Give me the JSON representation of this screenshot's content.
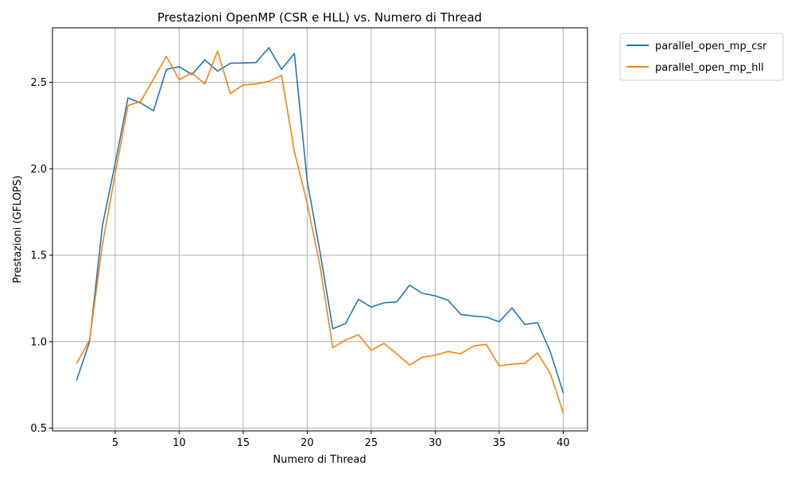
{
  "chart_data": {
    "type": "line",
    "title": "Prestazioni OpenMP (CSR e HLL) vs. Numero di Thread",
    "xlabel": "Numero di Thread",
    "ylabel": "Prestazioni (GFLOPS)",
    "xlim": [
      0.1,
      41.9
    ],
    "ylim": [
      0.484,
      2.815
    ],
    "xticks": [
      5,
      10,
      15,
      20,
      25,
      30,
      35,
      40
    ],
    "yticks": [
      0.5,
      1.0,
      1.5,
      2.0,
      2.5
    ],
    "xtick_labels": [
      "5",
      "10",
      "15",
      "20",
      "25",
      "30",
      "35",
      "40"
    ],
    "ytick_labels": [
      "0.5",
      "1.0",
      "1.5",
      "2.0",
      "2.5"
    ],
    "grid": true,
    "legend_position": "outside-top-right",
    "x": [
      2,
      3,
      4,
      5,
      6,
      7,
      8,
      9,
      10,
      11,
      12,
      13,
      14,
      15,
      16,
      17,
      18,
      19,
      20,
      21,
      22,
      23,
      24,
      25,
      26,
      27,
      28,
      29,
      30,
      31,
      32,
      33,
      34,
      35,
      36,
      37,
      38,
      39,
      40
    ],
    "series": [
      {
        "name": "parallel_open_mp_csr",
        "color": "#1f77b4",
        "values": [
          0.78,
          1.0,
          1.67,
          2.03,
          2.41,
          2.38,
          2.335,
          2.575,
          2.59,
          2.545,
          2.63,
          2.565,
          2.61,
          2.612,
          2.614,
          2.7,
          2.575,
          2.667,
          1.93,
          1.52,
          1.075,
          1.105,
          1.245,
          1.2,
          1.225,
          1.23,
          1.327,
          1.28,
          1.265,
          1.24,
          1.158,
          1.148,
          1.142,
          1.115,
          1.195,
          1.1,
          1.11,
          0.94,
          0.705
        ]
      },
      {
        "name": "parallel_open_mp_hll",
        "color": "#ff7f0e",
        "values": [
          0.875,
          1.01,
          1.56,
          1.97,
          2.365,
          2.39,
          2.52,
          2.65,
          2.515,
          2.555,
          2.49,
          2.68,
          2.435,
          2.485,
          2.49,
          2.505,
          2.54,
          2.1,
          1.8,
          1.44,
          0.965,
          1.01,
          1.04,
          0.95,
          0.99,
          0.93,
          0.865,
          0.91,
          0.922,
          0.943,
          0.93,
          0.975,
          0.985,
          0.86,
          0.87,
          0.875,
          0.935,
          0.815,
          0.59
        ]
      }
    ]
  }
}
